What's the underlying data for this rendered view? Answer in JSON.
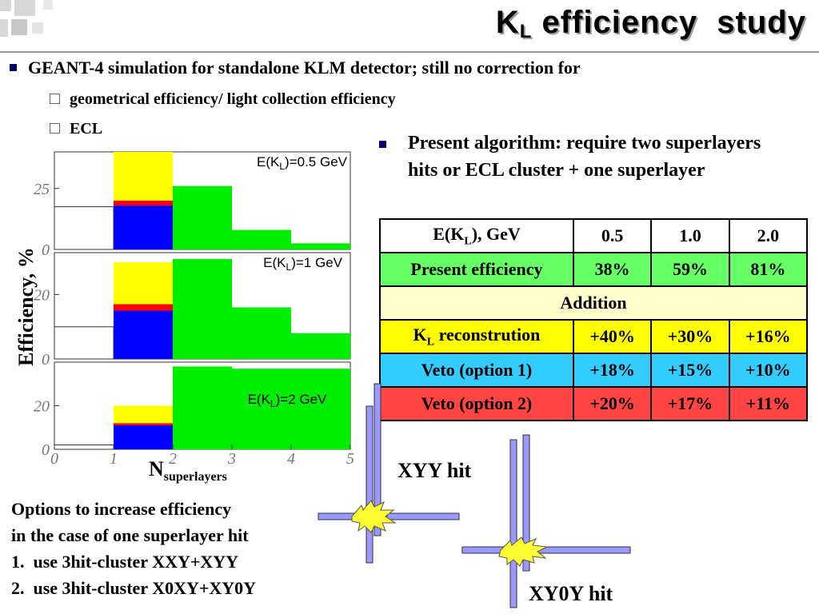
{
  "slide": {
    "title_main": "K",
    "title_sub": "L",
    "title_rest": " efficiency  study"
  },
  "bullets": {
    "main": "GEANT-4 simulation for standalone KLM detector; still no correction for",
    "sub1": "geometrical efficiency/ light collection efficiency",
    "sub2": "ECL",
    "present": "Present algorithm: require two superlayers hits or ECL cluster + one superlayer"
  },
  "colors": {
    "green": "#00ee00",
    "yellow": "#ffff00",
    "red": "#ff0000",
    "blue": "#0000ff"
  },
  "chart_data": {
    "type": "bar",
    "xlabel_main": "N",
    "xlabel_sub": "superlayers",
    "ylabel": "Efficiency, %",
    "xticks": [
      "0",
      "1",
      "2",
      "3",
      "4",
      "5"
    ],
    "xlim": [
      0,
      5
    ],
    "panels": [
      {
        "label_pre": "E(K",
        "label_sub": "L",
        "label_post": ")=0.5 GeV",
        "yticks": [
          "0",
          "25"
        ],
        "ymax": 40,
        "threshold_bin_1": 17.5,
        "stack_bin_1": {
          "blue": 18,
          "red": 2,
          "yellow": 20
        },
        "green_bins": [
          {
            "x": [
              2,
              3
            ],
            "value": 26
          },
          {
            "x": [
              3,
              4
            ],
            "value": 8
          },
          {
            "x": [
              4,
              5
            ],
            "value": 2.5
          }
        ]
      },
      {
        "label_pre": "E(K",
        "label_sub": "L",
        "label_post": ")=1 GeV",
        "yticks": [
          "0",
          "20"
        ],
        "ymax": 33,
        "threshold_bin_1": 10,
        "stack_bin_1": {
          "blue": 15,
          "red": 2,
          "yellow": 13
        },
        "green_bins": [
          {
            "x": [
              2,
              3
            ],
            "value": 31
          },
          {
            "x": [
              3,
              4
            ],
            "value": 16
          },
          {
            "x": [
              4,
              5
            ],
            "value": 8
          }
        ]
      },
      {
        "label_pre": "E(K",
        "label_sub": "L",
        "label_post": ")=2 GeV",
        "yticks": [
          "0",
          "20"
        ],
        "ymax": 40,
        "threshold_bin_1": 2,
        "stack_bin_1": {
          "blue": 11,
          "red": 1,
          "yellow": 8
        },
        "green_bins": [
          {
            "x": [
              2,
              3
            ],
            "value": 38
          },
          {
            "x": [
              3,
              4
            ],
            "value": 37
          },
          {
            "x": [
              4,
              5
            ],
            "value": 37
          }
        ]
      }
    ]
  },
  "table": {
    "header": {
      "pre": "E(K",
      "sub": "L",
      "post": "), GeV",
      "c1": "0.5",
      "c2": "1.0",
      "c3": "2.0"
    },
    "present": {
      "label": "Present efficiency",
      "c1": "38%",
      "c2": "59%",
      "c3": "81%"
    },
    "addition": "Addition",
    "kl": {
      "pre": "K",
      "sub": "L",
      "post": " reconstrution",
      "c1": "+40%",
      "c2": "+30%",
      "c3": "+16%"
    },
    "veto1": {
      "label": "Veto (option 1)",
      "c1": "+18%",
      "c2": "+15%",
      "c3": "+10%"
    },
    "veto2": {
      "label": "Veto (option 2)",
      "c1": "+20%",
      "c2": "+17%",
      "c3": "+11%"
    }
  },
  "options": {
    "line1": "Options to increase efficiency",
    "line2": "in the case of one superlayer hit",
    "item1_num": "1.",
    "item1": "use 3hit-cluster XXY+XYY",
    "item2_num": "2.",
    "item2": "use 3hit-cluster X0XY+XY0Y"
  },
  "diagram": {
    "label_xyy": "XYY hit",
    "label_xy0y": "XY0Y hit",
    "strip_color": "#9999ff",
    "spark_color": "#ffff33"
  }
}
